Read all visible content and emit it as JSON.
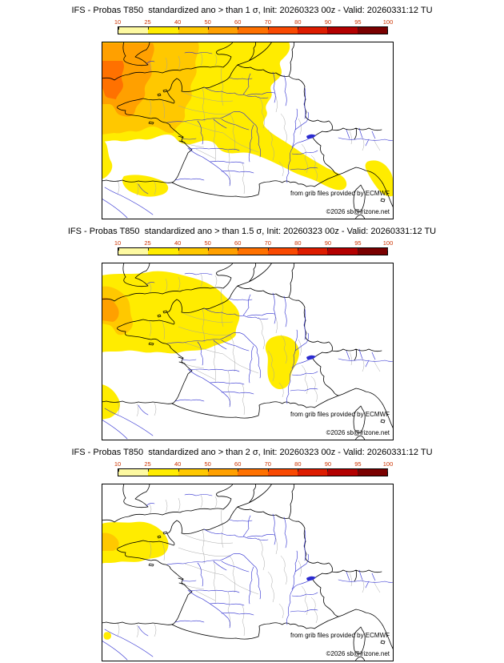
{
  "page": {
    "background": "#ffffff"
  },
  "colorbar": {
    "labels": [
      "10",
      "25",
      "40",
      "50",
      "60",
      "70",
      "80",
      "90",
      "95",
      "100"
    ],
    "colors": [
      "#fdf9a1",
      "#ffec00",
      "#ffc800",
      "#ffa000",
      "#ff7100",
      "#f94902",
      "#dd1c00",
      "#b30000",
      "#7a0000"
    ],
    "label_color": "#cc3300"
  },
  "map_style": {
    "river_color": "#2b2bd0",
    "coast_color": "#000000",
    "dept_border_color": "#a0a0a0",
    "land_color": "#ffffff"
  },
  "panels": [
    {
      "title": "IFS - Probas T850  standardized ano > than 1 σ, Init: 20260323 00z - Valid: 20260331:12 TU",
      "attribution_line1": "from grib files provided by ECMWF",
      "attribution_line2": "©2026 sb@irizone.net"
    },
    {
      "title": "IFS - Probas T850  standardized ano > than 1.5 σ, Init: 20260323 00z - Valid: 20260331:12 TU",
      "attribution_line1": "from grib files provided by ECMWF",
      "attribution_line2": "©2026 sb@irizone.net"
    },
    {
      "title": "IFS - Probas T850  standardized ano > than 2 σ, Init: 20260323 00z - Valid: 20260331:12 TU",
      "attribution_line1": "from grib files provided by ECMWF",
      "attribution_line2": "©2026 sb@irizone.net"
    }
  ]
}
